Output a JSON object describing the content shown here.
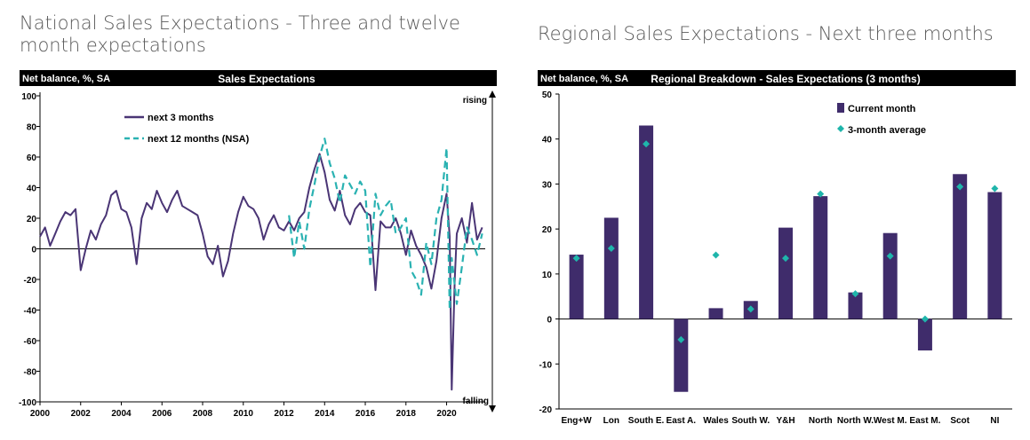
{
  "headings": {
    "left": "National Sales Expectations - Three and twelve month expectations",
    "right": "Regional Sales Expectations - Next three months"
  },
  "chart_data": [
    {
      "type": "line",
      "title": "Sales Expectations",
      "subtitle": "Net balance, %, SA",
      "xlim": [
        2000,
        2021.9
      ],
      "ylim": [
        -100,
        100
      ],
      "x_ticks": [
        2000,
        2002,
        2004,
        2006,
        2008,
        2010,
        2012,
        2014,
        2016,
        2018,
        2020
      ],
      "y_ticks": [
        100,
        80,
        60,
        40,
        20,
        0,
        -20,
        -40,
        -60,
        -80,
        -100
      ],
      "annotations": [
        "rising",
        "falling"
      ],
      "legend": "top-left",
      "colors": {
        "next3": "#4a3575",
        "next12": "#2ab2b2"
      },
      "series": [
        {
          "name": "next 3 months",
          "style": "solid",
          "x": [
            2000.0,
            2000.25,
            2000.5,
            2000.75,
            2001.0,
            2001.25,
            2001.5,
            2001.75,
            2002.0,
            2002.25,
            2002.5,
            2002.75,
            2003.0,
            2003.25,
            2003.5,
            2003.75,
            2004.0,
            2004.25,
            2004.5,
            2004.75,
            2005.0,
            2005.25,
            2005.5,
            2005.75,
            2006.0,
            2006.25,
            2006.5,
            2006.75,
            2007.0,
            2007.25,
            2007.5,
            2007.75,
            2008.0,
            2008.25,
            2008.5,
            2008.75,
            2009.0,
            2009.25,
            2009.5,
            2009.75,
            2010.0,
            2010.25,
            2010.5,
            2010.75,
            2011.0,
            2011.25,
            2011.5,
            2011.75,
            2012.0,
            2012.25,
            2012.5,
            2012.75,
            2013.0,
            2013.25,
            2013.5,
            2013.75,
            2014.0,
            2014.25,
            2014.5,
            2014.75,
            2015.0,
            2015.25,
            2015.5,
            2015.75,
            2016.0,
            2016.25,
            2016.5,
            2016.75,
            2017.0,
            2017.25,
            2017.5,
            2017.75,
            2018.0,
            2018.25,
            2018.5,
            2018.75,
            2019.0,
            2019.25,
            2019.5,
            2019.75,
            2020.0,
            2020.15,
            2020.25,
            2020.4,
            2020.5,
            2020.75,
            2021.0,
            2021.25,
            2021.5,
            2021.75
          ],
          "y": [
            8,
            14,
            2,
            10,
            18,
            24,
            22,
            26,
            -14,
            0,
            12,
            6,
            16,
            22,
            35,
            38,
            26,
            24,
            14,
            -10,
            20,
            30,
            26,
            38,
            30,
            24,
            32,
            38,
            28,
            26,
            24,
            22,
            10,
            -5,
            -10,
            2,
            -18,
            -8,
            10,
            24,
            34,
            28,
            26,
            20,
            6,
            16,
            22,
            14,
            12,
            18,
            12,
            20,
            24,
            40,
            52,
            62,
            50,
            32,
            25,
            38,
            22,
            16,
            26,
            30,
            24,
            22,
            -27,
            18,
            14,
            14,
            20,
            10,
            -4,
            12,
            2,
            -4,
            -12,
            -26,
            -8,
            20,
            36,
            8,
            -92,
            -20,
            10,
            20,
            4,
            30,
            6,
            14
          ]
        },
        {
          "name": "next 12 months (NSA)",
          "style": "dashed",
          "x": [
            2012.25,
            2012.5,
            2012.75,
            2013.0,
            2013.25,
            2013.5,
            2013.75,
            2014.0,
            2014.25,
            2014.5,
            2014.75,
            2015.0,
            2015.25,
            2015.5,
            2015.75,
            2016.0,
            2016.25,
            2016.5,
            2016.75,
            2017.0,
            2017.25,
            2017.5,
            2017.75,
            2018.0,
            2018.25,
            2018.5,
            2018.75,
            2019.0,
            2019.25,
            2019.5,
            2019.75,
            2020.0,
            2020.15,
            2020.25,
            2020.5,
            2020.75,
            2021.0,
            2021.25,
            2021.5,
            2021.75
          ],
          "y": [
            22,
            -6,
            18,
            0,
            26,
            42,
            60,
            72,
            56,
            46,
            30,
            48,
            42,
            36,
            44,
            38,
            -12,
            36,
            22,
            28,
            32,
            10,
            14,
            20,
            -14,
            -20,
            -30,
            4,
            -10,
            20,
            32,
            66,
            -40,
            -6,
            -36,
            -12,
            14,
            6,
            -4,
            10
          ]
        }
      ]
    },
    {
      "type": "bar",
      "title": "Regional Breakdown - Sales Expectations (3 months)",
      "subtitle": "Net balance, %, SA",
      "ylim": [
        -20,
        50
      ],
      "y_ticks": [
        50,
        40,
        30,
        20,
        10,
        0,
        -10,
        -20
      ],
      "legend": "top-center",
      "colors": {
        "bar": "#3f2c6b",
        "avg": "#1fb5ab"
      },
      "categories": [
        "Eng+W",
        "Lon",
        "South E.",
        "East A.",
        "Wales",
        "South W.",
        "Y&H",
        "North",
        "North W.",
        "West M.",
        "East M.",
        "Scot",
        "NI"
      ],
      "series": [
        {
          "name": "Current month",
          "kind": "bar",
          "values": [
            14.3,
            22.5,
            43,
            -16.2,
            2.4,
            4,
            20.3,
            27.3,
            5.9,
            19.1,
            -7,
            32.2,
            28.2
          ]
        },
        {
          "name": "3-month average",
          "kind": "marker",
          "values": [
            13.5,
            15.7,
            38.9,
            -4.6,
            14.2,
            2.2,
            13.5,
            27.8,
            5.6,
            14,
            0,
            29.4,
            29
          ]
        }
      ]
    }
  ]
}
